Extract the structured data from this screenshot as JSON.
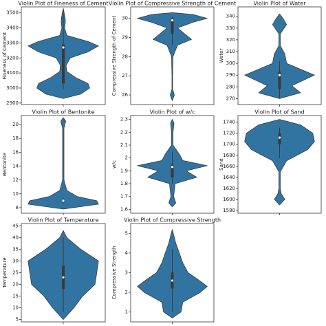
{
  "chart_data": [
    {
      "type": "violin",
      "title": "Violin Plot of Fineness of Cement",
      "ylabel": "Fineness of Cement",
      "color": "#3274a1",
      "ylim": [
        2890,
        3540
      ],
      "yticks": [
        2900,
        3000,
        3100,
        3200,
        3300,
        3400,
        3500
      ],
      "y": [
        2930,
        2960,
        3000,
        3030,
        3070,
        3110,
        3150,
        3200,
        3240,
        3280,
        3310,
        3350,
        3400,
        3440,
        3470,
        3530
      ],
      "density": [
        0,
        0.5,
        0.75,
        0.7,
        0.35,
        0.1,
        0.08,
        0.2,
        0.7,
        1.0,
        0.7,
        0.1,
        0.04,
        0.06,
        0.05,
        0
      ],
      "box": {
        "whisker_low": 2990,
        "q1": 3030,
        "median": 3270,
        "q3": 3290,
        "whisker_high": 3520
      }
    },
    {
      "type": "violin",
      "title": "Violin Plot of Compressive Strength of Cement",
      "ylabel": "Compressive Strength of Cement",
      "color": "#3274a1",
      "ylim": [
        25.5,
        30.6
      ],
      "yticks": [
        26,
        27,
        28,
        29,
        30
      ],
      "y": [
        25.7,
        26,
        26.3,
        27,
        28,
        28.6,
        28.9,
        29.2,
        29.5,
        29.8,
        30,
        30.2,
        30.3
      ],
      "density": [
        0,
        0.06,
        0.01,
        0.01,
        0.02,
        0.15,
        0.55,
        0.35,
        0.15,
        0.6,
        1.0,
        0.6,
        0
      ],
      "box": {
        "whisker_low": 28.6,
        "q1": 29.2,
        "median": 29.9,
        "q3": 30,
        "whisker_high": 30.1
      }
    },
    {
      "type": "violin",
      "title": "Violin Plot of Water",
      "ylabel": "Water",
      "color": "#3274a1",
      "ylim": [
        265,
        348
      ],
      "yticks": [
        270,
        280,
        290,
        300,
        310,
        320,
        330,
        340
      ],
      "y": [
        270,
        275,
        281,
        290,
        300,
        308,
        315,
        325,
        333,
        338,
        342
      ],
      "density": [
        0,
        0.6,
        0.35,
        1.0,
        0.2,
        0.15,
        0.02,
        0.02,
        0.2,
        0.1,
        0
      ],
      "box": {
        "whisker_low": 270,
        "q1": 278,
        "median": 290,
        "q3": 293,
        "whisker_high": 302
      }
    },
    {
      "type": "violin",
      "title": "Violin Plot of Bentonite",
      "ylabel": "Bentonite",
      "color": "#3274a1",
      "ylim": [
        7.2,
        21.3
      ],
      "yticks": [
        8,
        10,
        12,
        14,
        16,
        18,
        20
      ],
      "y": [
        7.8,
        8.5,
        9,
        9.6,
        10.5,
        12,
        15,
        19.5,
        20.5,
        21
      ],
      "density": [
        0,
        1.0,
        0.95,
        0.4,
        0.1,
        0.02,
        0.02,
        0.02,
        0.07,
        0
      ],
      "box": {
        "whisker_low": 8.6,
        "q1": 8.8,
        "median": 9,
        "q3": 9.1,
        "whisker_high": 9.4
      }
    },
    {
      "type": "violin",
      "title": "Violin Plot of w/c",
      "ylabel": "w/c",
      "color": "#3274a1",
      "ylim": [
        1.57,
        2.33
      ],
      "yticks": [
        1.6,
        1.7,
        1.8,
        1.9,
        2.0,
        2.1,
        2.2,
        2.3
      ],
      "y": [
        1.62,
        1.65,
        1.7,
        1.8,
        1.85,
        1.9,
        1.94,
        1.98,
        2.03,
        2.1,
        2.2,
        2.27,
        2.3
      ],
      "density": [
        0,
        0.1,
        0.04,
        0.08,
        0.7,
        0.4,
        1.0,
        0.3,
        0.2,
        0.02,
        0.02,
        0.05,
        0
      ],
      "box": {
        "whisker_low": 1.8,
        "q1": 1.85,
        "median": 1.93,
        "q3": 1.95,
        "whisker_high": 2.05
      }
    },
    {
      "type": "violin",
      "title": "Violin Plot of Sand",
      "ylabel": "Sand",
      "color": "#3274a1",
      "ylim": [
        1575,
        1752
      ],
      "yticks": [
        1580,
        1600,
        1620,
        1640,
        1660,
        1680,
        1700,
        1720,
        1740
      ],
      "y": [
        1590,
        1600,
        1610,
        1620,
        1650,
        1670,
        1690,
        1705,
        1720,
        1735,
        1745
      ],
      "density": [
        0,
        0.15,
        0.05,
        0.02,
        0.02,
        0.2,
        0.8,
        1.0,
        0.95,
        0.6,
        0
      ],
      "box": {
        "whisker_low": 1675,
        "q1": 1700,
        "median": 1712,
        "q3": 1720,
        "whisker_high": 1730
      }
    },
    {
      "type": "violin",
      "title": "Violin Plot of Temperature",
      "ylabel": "Temperature",
      "color": "#3274a1",
      "ylim": [
        4,
        46
      ],
      "yticks": [
        5,
        10,
        15,
        20,
        25,
        30,
        35,
        40,
        45
      ],
      "y": [
        5,
        10,
        15,
        20,
        25,
        30,
        35,
        40,
        43
      ],
      "density": [
        0,
        0.3,
        0.55,
        0.9,
        0.95,
        1.0,
        0.5,
        0.1,
        0
      ],
      "box": {
        "whisker_low": 8,
        "q1": 18,
        "median": 23,
        "q3": 28,
        "whisker_high": 40
      }
    },
    {
      "type": "violin",
      "title": "Violin Plot of Compressive Strength",
      "ylabel": "Compressive Strength",
      "color": "#3274a1",
      "ylim": [
        0.5,
        5.5
      ],
      "yticks": [
        1,
        2,
        3,
        4,
        5
      ],
      "y": [
        0.7,
        1,
        1.5,
        2,
        2.3,
        2.7,
        3,
        3.5,
        4,
        4.5,
        5,
        5.2
      ],
      "density": [
        0,
        0.25,
        0.3,
        0.8,
        1.0,
        0.7,
        0.45,
        0.3,
        0.2,
        0.1,
        0.03,
        0
      ],
      "box": {
        "whisker_low": 1,
        "q1": 2.2,
        "median": 2.6,
        "q3": 3,
        "whisker_high": 4.2
      }
    }
  ]
}
